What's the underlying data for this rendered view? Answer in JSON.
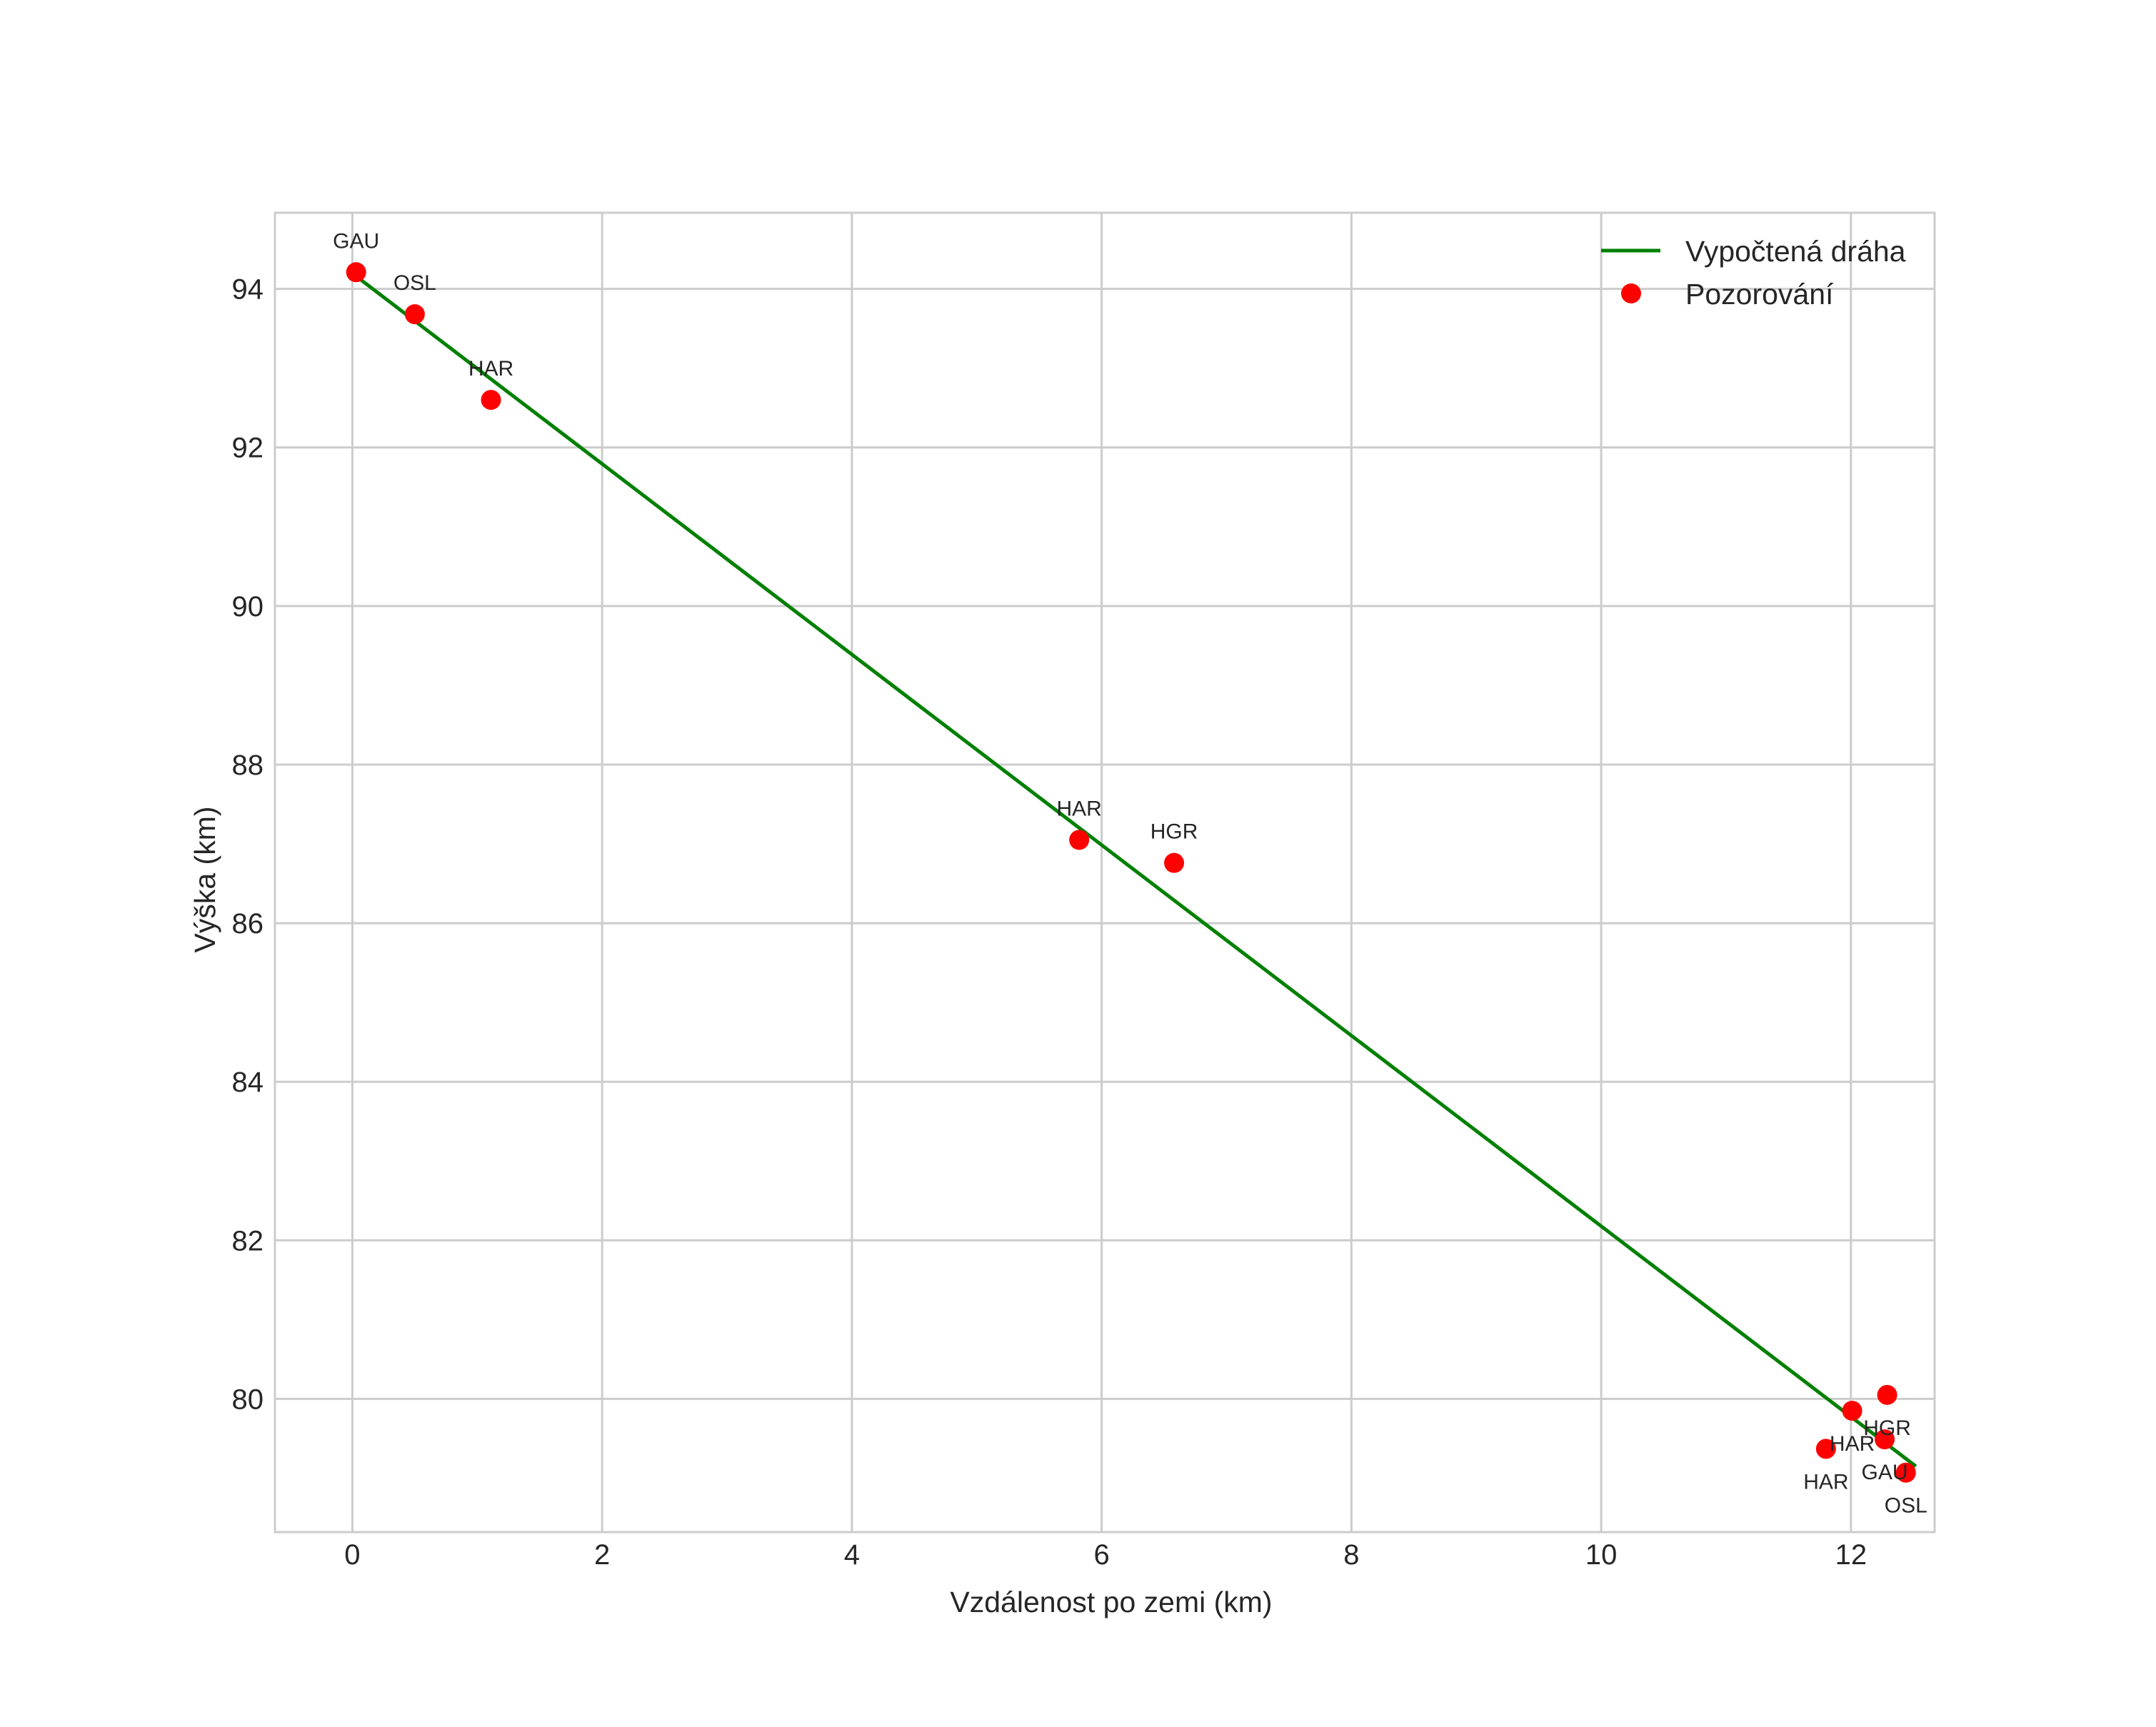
{
  "chart_data": {
    "type": "line",
    "title": "",
    "xlabel": "Vzdálenost po zemi (km)",
    "ylabel": "Výška (km)",
    "xlim": [
      -0.62,
      12.67
    ],
    "ylim": [
      78.32,
      94.96
    ],
    "xticks": [
      0,
      2,
      4,
      6,
      8,
      10,
      12
    ],
    "yticks": [
      80,
      82,
      84,
      86,
      88,
      90,
      92,
      94
    ],
    "grid": true,
    "legend_position": "upper right",
    "legend": [
      {
        "label": "Vypočtená dráha",
        "kind": "line",
        "color": "#008000"
      },
      {
        "label": "Pozorování",
        "kind": "marker",
        "color": "#ff0000"
      }
    ],
    "series": [
      {
        "name": "Vypočtená dráha",
        "type": "line",
        "color": "#008000",
        "x": [
          0.03,
          12.52
        ],
        "y": [
          94.16,
          79.15
        ]
      },
      {
        "name": "Pozorování",
        "type": "scatter",
        "color": "#ff0000",
        "points": [
          {
            "x": 0.03,
            "y": 94.21,
            "label": "GAU",
            "label_pos": "above"
          },
          {
            "x": 0.5,
            "y": 93.68,
            "label": "OSL",
            "label_pos": "above"
          },
          {
            "x": 1.11,
            "y": 92.6,
            "label": "HAR",
            "label_pos": "above"
          },
          {
            "x": 5.82,
            "y": 87.05,
            "label": "HAR",
            "label_pos": "above"
          },
          {
            "x": 6.58,
            "y": 86.76,
            "label": "HGR",
            "label_pos": "above"
          },
          {
            "x": 12.01,
            "y": 79.85,
            "label": "HAR",
            "label_pos": "below"
          },
          {
            "x": 12.29,
            "y": 80.05,
            "label": "HGR",
            "label_pos": "below"
          },
          {
            "x": 12.27,
            "y": 79.49,
            "label": "GAU",
            "label_pos": "below"
          },
          {
            "x": 11.8,
            "y": 79.37,
            "label": "HAR",
            "label_pos": "below"
          },
          {
            "x": 12.44,
            "y": 79.07,
            "label": "OSL",
            "label_pos": "below"
          }
        ]
      }
    ]
  },
  "colors": {
    "grid": "#cccccc",
    "frame": "#cccccc",
    "text": "#262626",
    "line": "#008000",
    "marker": "#ff0000",
    "background": "#ffffff"
  }
}
